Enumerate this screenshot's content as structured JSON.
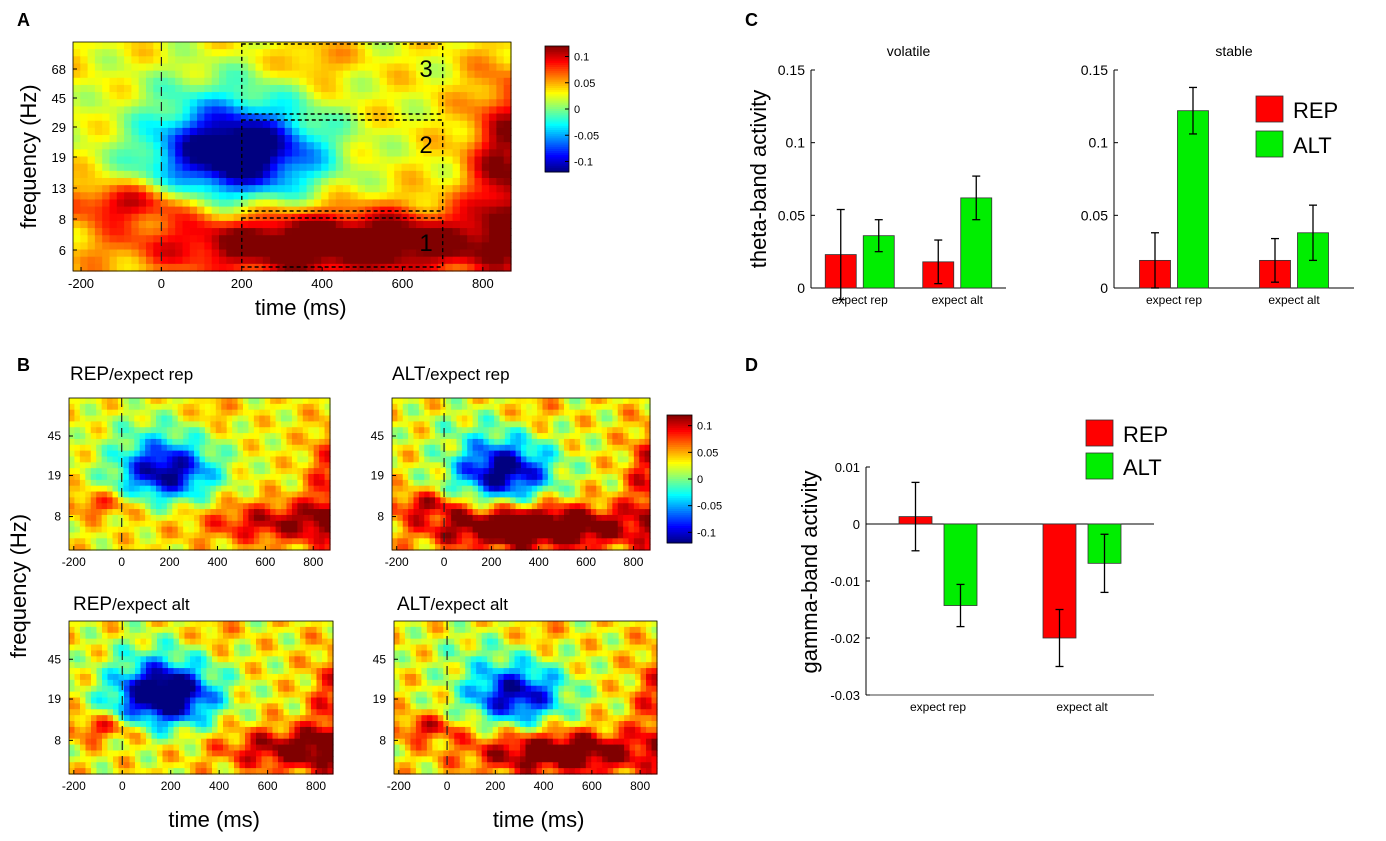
{
  "panels": {
    "a": {
      "letter": "A"
    },
    "b": {
      "letter": "B"
    },
    "c": {
      "letter": "C"
    },
    "d": {
      "letter": "D"
    }
  },
  "heatmap_titles": {
    "rep_expect_rep": {
      "main": "REP",
      "sub": "/expect rep"
    },
    "alt_expect_rep": {
      "main": "ALT",
      "sub": "/expect rep"
    },
    "rep_expect_alt": {
      "main": "REP",
      "sub": "/expect alt"
    },
    "alt_expect_alt": {
      "main": "ALT",
      "sub": "/expect alt"
    }
  },
  "chart_data": [
    {
      "id": "A",
      "type": "heatmap",
      "title": "",
      "xlabel": "time (ms)",
      "ylabel": "frequency (Hz)",
      "xlim": [
        -220,
        870
      ],
      "xticks": [
        "-200",
        "0",
        "200",
        "400",
        "600",
        "800"
      ],
      "yticks": [
        "6",
        "8",
        "13",
        "19",
        "29",
        "45",
        "68"
      ],
      "colorbar": {
        "range": [
          -0.12,
          0.12
        ],
        "ticks": [
          "0.1",
          "0.05",
          "0",
          "-0.05",
          "-0.1"
        ]
      },
      "regions": [
        {
          "label": "1",
          "time": [
            200,
            700
          ],
          "band": "6-8 Hz",
          "sign": "positive"
        },
        {
          "label": "2",
          "time": [
            200,
            700
          ],
          "band": "13-29 Hz",
          "sign": "negative"
        },
        {
          "label": "3",
          "time": [
            200,
            700
          ],
          "band": "45-68+ Hz",
          "sign": "positive"
        }
      ],
      "annotations": [
        "stimulus onset at 0 ms (dashed line)"
      ]
    },
    {
      "id": "B1",
      "type": "heatmap",
      "condition": "REP/expect rep",
      "xlabel": "",
      "ylabel": "frequency (Hz)",
      "xticks": [
        "-200",
        "0",
        "200",
        "400",
        "600",
        "800"
      ],
      "yticks": [
        "8",
        "19",
        "45"
      ]
    },
    {
      "id": "B2",
      "type": "heatmap",
      "condition": "ALT/expect rep",
      "xticks": [
        "-200",
        "0",
        "200",
        "400",
        "600",
        "800"
      ],
      "yticks": [
        "8",
        "19",
        "45"
      ],
      "colorbar": {
        "range": [
          -0.12,
          0.12
        ],
        "ticks": [
          "0.1",
          "0.05",
          "0",
          "-0.05",
          "-0.1"
        ]
      }
    },
    {
      "id": "B3",
      "type": "heatmap",
      "condition": "REP/expect alt",
      "xlabel": "time (ms)",
      "xticks": [
        "-200",
        "0",
        "200",
        "400",
        "600",
        "800"
      ],
      "yticks": [
        "8",
        "19",
        "45"
      ]
    },
    {
      "id": "B4",
      "type": "heatmap",
      "condition": "ALT/expect alt",
      "xlabel": "time (ms)",
      "xticks": [
        "-200",
        "0",
        "200",
        "400",
        "600",
        "800"
      ],
      "yticks": [
        "8",
        "19",
        "45"
      ]
    },
    {
      "id": "C-volatile",
      "type": "bar",
      "title": "volatile",
      "ylabel": "theta-band activity",
      "categories": [
        "expect rep",
        "expect alt"
      ],
      "ylim": [
        0,
        0.15
      ],
      "yticks": [
        "0",
        "0.05",
        "0.1",
        "0.15"
      ],
      "series": [
        {
          "name": "REP",
          "color": "#ff0000",
          "values": [
            0.023,
            0.018
          ],
          "errors": [
            0.031,
            0.015
          ]
        },
        {
          "name": "ALT",
          "color": "#00ee00",
          "values": [
            0.036,
            0.062
          ],
          "errors": [
            0.011,
            0.015
          ]
        }
      ]
    },
    {
      "id": "C-stable",
      "type": "bar",
      "title": "stable",
      "categories": [
        "expect rep",
        "expect alt"
      ],
      "ylim": [
        0,
        0.15
      ],
      "yticks": [
        "0",
        "0.05",
        "0.1",
        "0.15"
      ],
      "legend": {
        "position": "top-right",
        "entries": [
          "REP",
          "ALT"
        ]
      },
      "series": [
        {
          "name": "REP",
          "color": "#ff0000",
          "values": [
            0.019,
            0.019
          ],
          "errors": [
            0.019,
            0.015
          ]
        },
        {
          "name": "ALT",
          "color": "#00ee00",
          "values": [
            0.122,
            0.038
          ],
          "errors": [
            0.016,
            0.019
          ]
        }
      ]
    },
    {
      "id": "D",
      "type": "bar",
      "title": "",
      "ylabel": "gamma-band activity",
      "categories": [
        "expect rep",
        "expect alt"
      ],
      "ylim": [
        -0.03,
        0.01
      ],
      "yticks": [
        "0.01",
        "0",
        "-0.01",
        "-0.02",
        "-0.03"
      ],
      "legend": {
        "position": "top",
        "entries": [
          "REP",
          "ALT"
        ]
      },
      "series": [
        {
          "name": "REP",
          "color": "#ff0000",
          "values": [
            0.0013,
            -0.02
          ],
          "errors": [
            0.006,
            0.005
          ]
        },
        {
          "name": "ALT",
          "color": "#00ee00",
          "values": [
            -0.0143,
            -0.0069
          ],
          "errors": [
            0.0037,
            0.0051
          ]
        }
      ]
    }
  ]
}
